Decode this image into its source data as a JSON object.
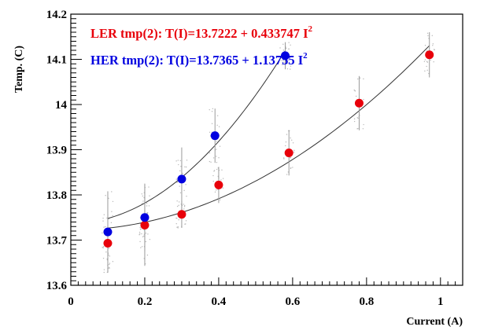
{
  "chart_data": {
    "type": "scatter",
    "title": "",
    "xlabel": "Current (A)",
    "ylabel": "Temp. (C)",
    "xlim": [
      0,
      1.06
    ],
    "ylim": [
      13.6,
      14.2
    ],
    "x_ticks": [
      0,
      0.2,
      0.4,
      0.6,
      0.8,
      1
    ],
    "x_tick_labels": [
      "0",
      "0.2",
      "0.4",
      "0.6",
      "0.8",
      "1"
    ],
    "y_ticks": [
      13.6,
      13.7,
      13.8,
      13.9,
      14.0,
      14.1,
      14.2
    ],
    "y_tick_labels": [
      "13.6",
      "13.7",
      "13.8",
      "13.9",
      "14",
      "14.1",
      "14.2"
    ],
    "grid": false,
    "series": [
      {
        "name": "LER tmp(2)",
        "color": "#e8000a",
        "fit_label": "LER tmp(2): T(I)=13.7222 + 0.433747 I",
        "fit_exponent": "2",
        "fit": {
          "a": 13.7222,
          "b": 0.433747,
          "x_range": [
            0.1,
            0.97
          ]
        },
        "points": [
          {
            "x": 0.1,
            "y": 13.693,
            "err": 0.065
          },
          {
            "x": 0.2,
            "y": 13.733,
            "err": 0.09
          },
          {
            "x": 0.3,
            "y": 13.757,
            "err": 0.03
          },
          {
            "x": 0.4,
            "y": 13.822,
            "err": 0.04
          },
          {
            "x": 0.59,
            "y": 13.893,
            "err": 0.05
          },
          {
            "x": 0.78,
            "y": 14.003,
            "err": 0.06
          },
          {
            "x": 0.97,
            "y": 14.11,
            "err": 0.05
          }
        ]
      },
      {
        "name": "HER tmp(2)",
        "color": "#0000e0",
        "fit_label": "HER tmp(2): T(I)=13.7365 + 1.13755 I",
        "fit_exponent": "2",
        "fit": {
          "a": 13.7365,
          "b": 1.13755,
          "x_range": [
            0.1,
            0.58
          ]
        },
        "points": [
          {
            "x": 0.1,
            "y": 13.718,
            "err": 0.09
          },
          {
            "x": 0.2,
            "y": 13.75,
            "err": 0.075
          },
          {
            "x": 0.3,
            "y": 13.835,
            "err": 0.07
          },
          {
            "x": 0.39,
            "y": 13.931,
            "err": 0.06
          },
          {
            "x": 0.58,
            "y": 14.108,
            "err": 0.03
          }
        ]
      }
    ]
  }
}
